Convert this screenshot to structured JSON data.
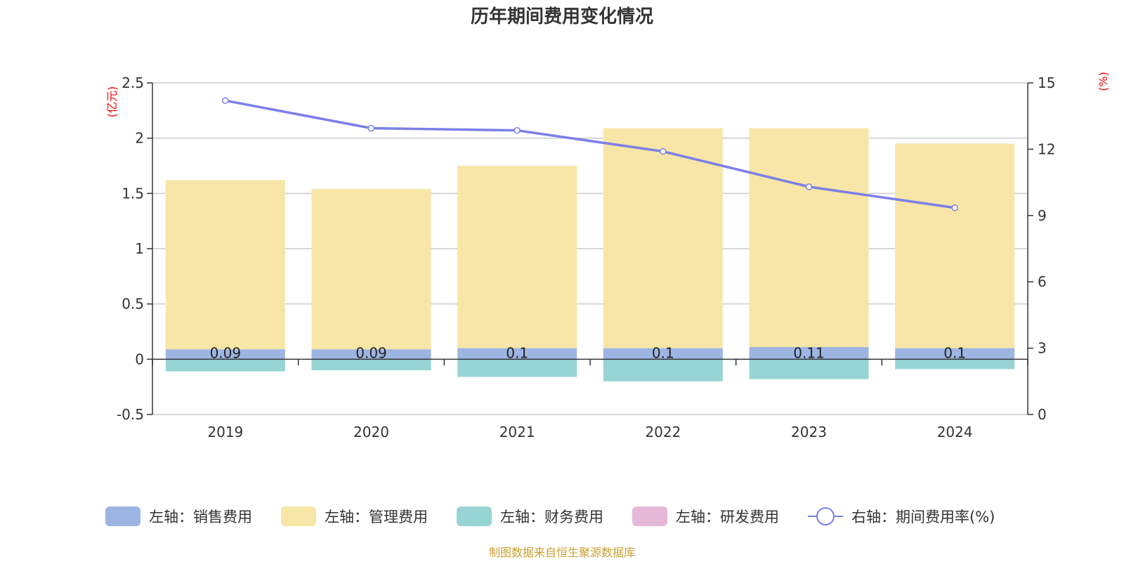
{
  "chart_data": {
    "type": "bar",
    "title": "历年期间费用变化情况",
    "categories": [
      "2019",
      "2020",
      "2021",
      "2022",
      "2023",
      "2024"
    ],
    "left_axis": {
      "unit": "(亿元)",
      "ylim": [
        -0.5,
        2.5
      ],
      "ticks": [
        "2.5",
        "2",
        "1.5",
        "1",
        "0.5",
        "0",
        "-0.5"
      ]
    },
    "right_axis": {
      "unit": "(%)",
      "ylim": [
        0,
        15
      ],
      "ticks": [
        "15",
        "12",
        "9",
        "6",
        "3",
        "0"
      ]
    },
    "series": [
      {
        "name": "左轴：销售费用",
        "axis": "left",
        "kind": "bar",
        "color": "#9db5e2",
        "values": [
          0.09,
          0.09,
          0.1,
          0.1,
          0.11,
          0.1
        ],
        "labels": [
          "0.09",
          "0.09",
          "0.1",
          "0.1",
          "0.11",
          "0.1"
        ]
      },
      {
        "name": "左轴：管理费用",
        "axis": "left",
        "kind": "bar",
        "color": "#f7e6a7",
        "values": [
          1.53,
          1.45,
          1.65,
          1.99,
          1.98,
          1.85
        ]
      },
      {
        "name": "左轴：财务费用",
        "axis": "left",
        "kind": "bar",
        "color": "#97d5d5",
        "values": [
          -0.11,
          -0.1,
          -0.16,
          -0.2,
          -0.18,
          -0.09
        ]
      },
      {
        "name": "左轴：研发费用",
        "axis": "left",
        "kind": "bar",
        "color": "#e6b8d8",
        "values": [
          0,
          0,
          0,
          0,
          0,
          0
        ]
      },
      {
        "name": "右轴：期间费用率(%)",
        "axis": "right",
        "kind": "line",
        "color": "#7b7fe8",
        "values": [
          14.2,
          12.95,
          12.85,
          11.9,
          10.3,
          9.35
        ]
      }
    ],
    "grid": true,
    "legend_position": "bottom"
  },
  "source_note": "制图数据来自恒生聚源数据库"
}
